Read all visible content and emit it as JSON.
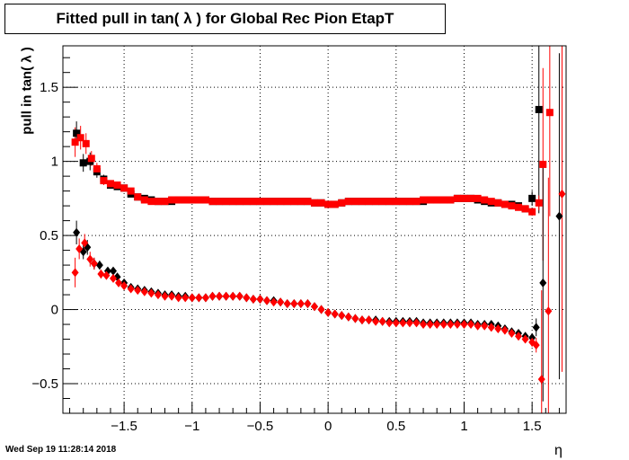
{
  "chart_data": {
    "type": "scatter",
    "title": "Fitted pull in tan( λ ) for Global Rec Pion EtapT",
    "xlabel": "η",
    "ylabel": "pull in tan( λ )",
    "xlim": [
      -1.95,
      1.75
    ],
    "ylim": [
      -0.7,
      1.78
    ],
    "grid": true,
    "x_ticks": [
      -1.5,
      -1,
      -0.5,
      0,
      0.5,
      1,
      1.5
    ],
    "x_tick_labels": [
      "−1.5",
      "−1",
      "−0.5",
      "0",
      "0.5",
      "1",
      "1.5"
    ],
    "y_ticks": [
      -0.5,
      0,
      0.5,
      1,
      1.5
    ],
    "y_tick_labels": [
      "−0.5",
      "0",
      "0.5",
      "1",
      "1.5"
    ],
    "colors": {
      "black": "#000000",
      "red": "#ff0000"
    },
    "series": [
      {
        "marker": "square",
        "color": "#000000",
        "x": [
          -1.85,
          -1.8,
          -1.75,
          -1.7,
          -1.65,
          -1.6,
          -1.55,
          -1.5,
          -1.45,
          -1.4,
          -1.35,
          -1.3,
          -1.25,
          -1.2,
          -1.15,
          -1.1,
          -1.05,
          -1.0,
          -0.95,
          -0.9,
          -0.85,
          -0.8,
          -0.75,
          -0.7,
          -0.65,
          -0.6,
          -0.55,
          -0.5,
          -0.45,
          -0.4,
          -0.35,
          -0.3,
          -0.25,
          -0.2,
          -0.15,
          -0.1,
          -0.05,
          0.0,
          0.05,
          0.1,
          0.15,
          0.2,
          0.25,
          0.3,
          0.35,
          0.4,
          0.45,
          0.5,
          0.55,
          0.6,
          0.65,
          0.7,
          0.75,
          0.8,
          0.85,
          0.9,
          0.95,
          1.0,
          1.05,
          1.1,
          1.15,
          1.2,
          1.25,
          1.3,
          1.35,
          1.4,
          1.45,
          1.5,
          1.55,
          1.6,
          1.65
        ],
        "y": [
          1.19,
          0.99,
          1.0,
          0.93,
          0.88,
          0.84,
          0.83,
          0.82,
          0.78,
          0.76,
          0.75,
          0.74,
          0.73,
          0.73,
          0.73,
          0.74,
          0.74,
          0.74,
          0.74,
          0.74,
          0.73,
          0.73,
          0.73,
          0.73,
          0.73,
          0.73,
          0.73,
          0.73,
          0.73,
          0.73,
          0.73,
          0.73,
          0.73,
          0.73,
          0.73,
          0.72,
          0.72,
          0.71,
          0.71,
          0.72,
          0.73,
          0.73,
          0.73,
          0.73,
          0.73,
          0.73,
          0.73,
          0.73,
          0.73,
          0.73,
          0.73,
          0.73,
          0.74,
          0.74,
          0.74,
          0.74,
          0.75,
          0.75,
          0.75,
          0.74,
          0.73,
          0.72,
          0.72,
          0.71,
          0.71,
          0.7,
          0.68,
          0.75,
          1.35,
          null,
          null
        ],
        "err": [
          0.08,
          0.06,
          0.06,
          0.04,
          0.03,
          0.02,
          0.02,
          0.02,
          0.01,
          0.01,
          0.01,
          0.01,
          0.01,
          0.01,
          0.01,
          0.01,
          0.01,
          0.01,
          0.01,
          0.01,
          0.01,
          0.01,
          0.01,
          0.01,
          0.01,
          0.01,
          0.01,
          0.01,
          0.01,
          0.01,
          0.01,
          0.01,
          0.01,
          0.01,
          0.01,
          0.01,
          0.01,
          0.01,
          0.01,
          0.01,
          0.01,
          0.01,
          0.01,
          0.01,
          0.01,
          0.01,
          0.01,
          0.01,
          0.01,
          0.01,
          0.01,
          0.01,
          0.01,
          0.01,
          0.01,
          0.01,
          0.01,
          0.01,
          0.01,
          0.01,
          0.01,
          0.01,
          0.01,
          0.01,
          0.01,
          0.02,
          0.02,
          0.05,
          0.7,
          0,
          0
        ]
      },
      {
        "marker": "square",
        "color": "#ff0000",
        "x": [
          -1.86,
          -1.82,
          -1.78,
          -1.74,
          -1.7,
          -1.65,
          -1.6,
          -1.55,
          -1.5,
          -1.45,
          -1.4,
          -1.35,
          -1.3,
          -1.25,
          -1.2,
          -1.15,
          -1.1,
          -1.05,
          -1.0,
          -0.95,
          -0.9,
          -0.85,
          -0.8,
          -0.75,
          -0.7,
          -0.65,
          -0.6,
          -0.55,
          -0.5,
          -0.45,
          -0.4,
          -0.35,
          -0.3,
          -0.25,
          -0.2,
          -0.15,
          -0.1,
          -0.05,
          0.0,
          0.05,
          0.1,
          0.15,
          0.2,
          0.25,
          0.3,
          0.35,
          0.4,
          0.45,
          0.5,
          0.55,
          0.6,
          0.65,
          0.7,
          0.75,
          0.8,
          0.85,
          0.9,
          0.95,
          1.0,
          1.05,
          1.1,
          1.15,
          1.2,
          1.25,
          1.3,
          1.35,
          1.4,
          1.45,
          1.5,
          1.55,
          1.58,
          1.63
        ],
        "y": [
          1.13,
          1.16,
          1.12,
          1.02,
          0.95,
          0.87,
          0.85,
          0.84,
          0.82,
          0.8,
          0.76,
          0.74,
          0.73,
          0.73,
          0.73,
          0.74,
          0.74,
          0.74,
          0.74,
          0.74,
          0.74,
          0.73,
          0.73,
          0.73,
          0.73,
          0.73,
          0.73,
          0.73,
          0.73,
          0.73,
          0.73,
          0.73,
          0.73,
          0.73,
          0.73,
          0.73,
          0.72,
          0.72,
          0.71,
          0.71,
          0.72,
          0.73,
          0.73,
          0.73,
          0.73,
          0.73,
          0.73,
          0.73,
          0.73,
          0.73,
          0.73,
          0.73,
          0.74,
          0.74,
          0.74,
          0.74,
          0.74,
          0.75,
          0.75,
          0.75,
          0.75,
          0.74,
          0.73,
          0.72,
          0.71,
          0.7,
          0.69,
          0.68,
          0.66,
          0.72,
          0.98,
          1.33
        ],
        "err": [
          0.1,
          0.08,
          0.07,
          0.05,
          0.04,
          0.03,
          0.02,
          0.02,
          0.02,
          0.01,
          0.01,
          0.01,
          0.01,
          0.01,
          0.01,
          0.01,
          0.01,
          0.01,
          0.01,
          0.01,
          0.01,
          0.01,
          0.01,
          0.01,
          0.01,
          0.01,
          0.01,
          0.01,
          0.01,
          0.01,
          0.01,
          0.01,
          0.01,
          0.01,
          0.01,
          0.01,
          0.01,
          0.01,
          0.01,
          0.01,
          0.01,
          0.01,
          0.01,
          0.01,
          0.01,
          0.01,
          0.01,
          0.01,
          0.01,
          0.01,
          0.01,
          0.01,
          0.01,
          0.01,
          0.01,
          0.01,
          0.01,
          0.01,
          0.01,
          0.01,
          0.01,
          0.01,
          0.01,
          0.01,
          0.01,
          0.01,
          0.01,
          0.02,
          0.02,
          0.05,
          0.65,
          0.7
        ]
      },
      {
        "marker": "diamond",
        "color": "#000000",
        "x": [
          -1.85,
          -1.8,
          -1.77,
          -1.72,
          -1.68,
          -1.62,
          -1.58,
          -1.55,
          -1.5,
          -1.45,
          -1.4,
          -1.35,
          -1.3,
          -1.25,
          -1.2,
          -1.15,
          -1.1,
          -1.05,
          -1.0,
          -0.95,
          -0.9,
          -0.85,
          -0.8,
          -0.75,
          -0.7,
          -0.65,
          -0.6,
          -0.55,
          -0.5,
          -0.45,
          -0.4,
          -0.35,
          -0.3,
          -0.25,
          -0.2,
          -0.15,
          -0.1,
          -0.05,
          0.0,
          0.05,
          0.1,
          0.15,
          0.2,
          0.25,
          0.3,
          0.35,
          0.4,
          0.45,
          0.5,
          0.55,
          0.6,
          0.65,
          0.7,
          0.75,
          0.8,
          0.85,
          0.9,
          0.95,
          1.0,
          1.05,
          1.1,
          1.15,
          1.2,
          1.25,
          1.3,
          1.35,
          1.4,
          1.45,
          1.5,
          1.53,
          1.58,
          1.7
        ],
        "y": [
          0.52,
          0.39,
          0.42,
          0.31,
          0.3,
          0.26,
          0.26,
          0.22,
          0.18,
          0.15,
          0.14,
          0.13,
          0.12,
          0.11,
          0.1,
          0.1,
          0.09,
          0.09,
          0.08,
          0.08,
          0.08,
          0.09,
          0.09,
          0.09,
          0.09,
          0.09,
          0.08,
          0.07,
          0.07,
          0.06,
          0.06,
          0.05,
          0.04,
          0.04,
          0.04,
          0.04,
          0.02,
          0.0,
          -0.02,
          -0.03,
          -0.04,
          -0.05,
          -0.06,
          -0.07,
          -0.07,
          -0.07,
          -0.08,
          -0.08,
          -0.08,
          -0.08,
          -0.08,
          -0.08,
          -0.09,
          -0.09,
          -0.09,
          -0.09,
          -0.09,
          -0.09,
          -0.09,
          -0.09,
          -0.1,
          -0.1,
          -0.1,
          -0.11,
          -0.13,
          -0.15,
          -0.16,
          -0.18,
          -0.19,
          -0.12,
          0.18,
          0.63
        ],
        "err": [
          0.08,
          0.05,
          0.05,
          0.04,
          0.03,
          0.02,
          0.02,
          0.02,
          0.01,
          0.01,
          0.01,
          0.01,
          0.01,
          0.01,
          0.01,
          0.01,
          0.01,
          0.01,
          0.01,
          0.01,
          0.01,
          0.01,
          0.01,
          0.01,
          0.01,
          0.01,
          0.01,
          0.01,
          0.01,
          0.01,
          0.01,
          0.01,
          0.01,
          0.01,
          0.01,
          0.01,
          0.01,
          0.01,
          0.01,
          0.01,
          0.01,
          0.01,
          0.01,
          0.01,
          0.01,
          0.01,
          0.01,
          0.01,
          0.01,
          0.01,
          0.01,
          0.01,
          0.01,
          0.01,
          0.01,
          0.01,
          0.01,
          0.01,
          0.01,
          0.01,
          0.01,
          0.01,
          0.01,
          0.01,
          0.01,
          0.01,
          0.01,
          0.02,
          0.03,
          0.06,
          0.8,
          1.1
        ]
      },
      {
        "marker": "diamond",
        "color": "#ff0000",
        "x": [
          -1.86,
          -1.83,
          -1.79,
          -1.75,
          -1.72,
          -1.67,
          -1.63,
          -1.58,
          -1.54,
          -1.5,
          -1.45,
          -1.4,
          -1.35,
          -1.3,
          -1.25,
          -1.2,
          -1.15,
          -1.1,
          -1.05,
          -1.0,
          -0.95,
          -0.9,
          -0.85,
          -0.8,
          -0.75,
          -0.7,
          -0.65,
          -0.6,
          -0.55,
          -0.5,
          -0.45,
          -0.4,
          -0.35,
          -0.3,
          -0.25,
          -0.2,
          -0.15,
          -0.1,
          -0.05,
          0.0,
          0.05,
          0.1,
          0.15,
          0.2,
          0.25,
          0.3,
          0.35,
          0.4,
          0.45,
          0.5,
          0.55,
          0.6,
          0.65,
          0.7,
          0.75,
          0.8,
          0.85,
          0.9,
          0.95,
          1.0,
          1.05,
          1.1,
          1.15,
          1.2,
          1.25,
          1.3,
          1.35,
          1.4,
          1.45,
          1.5,
          1.53,
          1.57,
          1.62,
          1.72
        ],
        "y": [
          0.25,
          0.41,
          0.45,
          0.34,
          0.31,
          0.24,
          0.23,
          0.21,
          0.18,
          0.16,
          0.14,
          0.13,
          0.12,
          0.11,
          0.1,
          0.09,
          0.09,
          0.08,
          0.08,
          0.08,
          0.08,
          0.08,
          0.09,
          0.09,
          0.09,
          0.09,
          0.09,
          0.08,
          0.07,
          0.07,
          0.06,
          0.05,
          0.05,
          0.04,
          0.04,
          0.04,
          0.04,
          0.02,
          0.0,
          -0.02,
          -0.03,
          -0.04,
          -0.05,
          -0.06,
          -0.07,
          -0.07,
          -0.08,
          -0.08,
          -0.09,
          -0.09,
          -0.09,
          -0.09,
          -0.09,
          -0.1,
          -0.1,
          -0.1,
          -0.1,
          -0.1,
          -0.1,
          -0.1,
          -0.1,
          -0.11,
          -0.11,
          -0.12,
          -0.13,
          -0.14,
          -0.16,
          -0.18,
          -0.2,
          -0.22,
          -0.24,
          -0.47,
          -0.01,
          0.78
        ],
        "err": [
          0.1,
          0.07,
          0.06,
          0.05,
          0.04,
          0.03,
          0.02,
          0.02,
          0.02,
          0.01,
          0.01,
          0.01,
          0.01,
          0.01,
          0.01,
          0.01,
          0.01,
          0.01,
          0.01,
          0.01,
          0.01,
          0.01,
          0.01,
          0.01,
          0.01,
          0.01,
          0.01,
          0.01,
          0.01,
          0.01,
          0.01,
          0.01,
          0.01,
          0.01,
          0.01,
          0.01,
          0.01,
          0.01,
          0.01,
          0.01,
          0.01,
          0.01,
          0.01,
          0.01,
          0.01,
          0.01,
          0.01,
          0.01,
          0.01,
          0.01,
          0.01,
          0.01,
          0.01,
          0.01,
          0.01,
          0.01,
          0.01,
          0.01,
          0.01,
          0.01,
          0.01,
          0.01,
          0.01,
          0.01,
          0.01,
          0.01,
          0.01,
          0.02,
          0.02,
          0.03,
          0.05,
          0.6,
          0.9,
          1.2
        ]
      }
    ]
  },
  "footer": {
    "timestamp": "Wed Sep 19 11:28:14 2018"
  }
}
